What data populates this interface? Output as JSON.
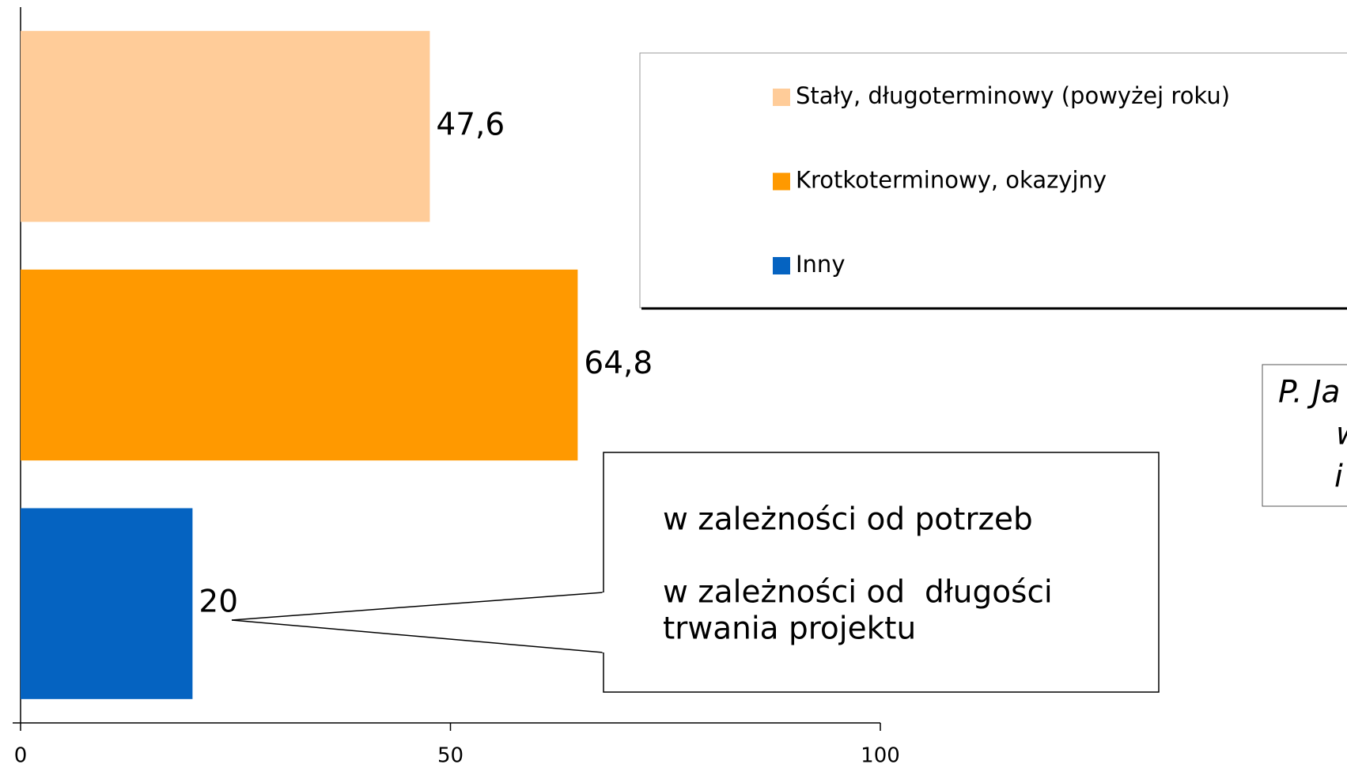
{
  "chart_data": {
    "type": "bar",
    "orientation": "horizontal",
    "series": [
      {
        "name": "Stały, długoterminowy (powyżej roku)",
        "color": "#ffcc99",
        "values": [
          47.6
        ],
        "value_labels": [
          "47,6"
        ]
      },
      {
        "name": "Krotkoterminowy, okazyjny",
        "color": "#ff9900",
        "values": [
          64.8
        ],
        "value_labels": [
          "64,8"
        ]
      },
      {
        "name": "Inny",
        "color": "#0563c1",
        "values": [
          20
        ],
        "value_labels": [
          "20"
        ]
      }
    ],
    "xlim": [
      0,
      100
    ],
    "xticks": [
      0,
      50,
      100
    ],
    "legend": "top-right",
    "annotations": [
      "w zależności od potrzeb",
      "w zależności od  długości",
      "trwania projektu"
    ],
    "citation": [
      "P. Ja",
      "w",
      "i"
    ]
  }
}
